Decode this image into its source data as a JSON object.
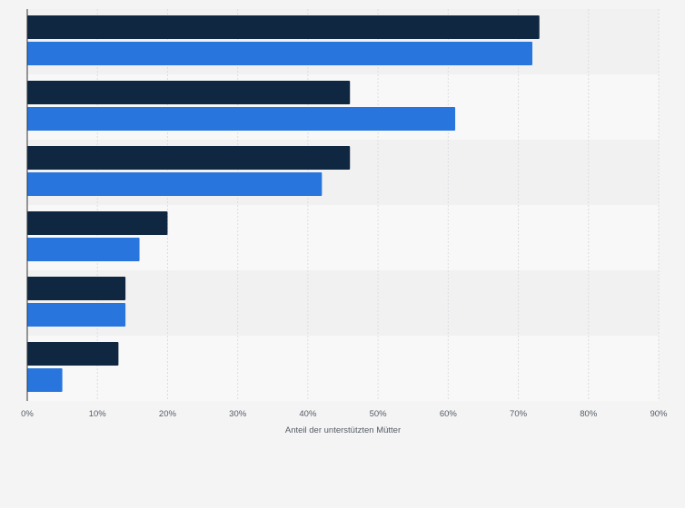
{
  "chart_data": {
    "type": "bar",
    "orientation": "horizontal",
    "xlabel": "Anteil der unterstützten Mütter",
    "ylabel": "",
    "xlim": [
      0,
      90
    ],
    "x_ticks": [
      "0%",
      "10%",
      "20%",
      "30%",
      "40%",
      "50%",
      "60%",
      "70%",
      "80%",
      "90%"
    ],
    "x_tick_values": [
      0,
      10,
      20,
      30,
      40,
      50,
      60,
      70,
      80,
      90
    ],
    "grid": true,
    "categories": [
      "",
      "",
      "",
      "",
      "",
      ""
    ],
    "series": [
      {
        "name": "",
        "color": "#0f2741",
        "values": [
          73,
          46,
          46,
          20,
          14,
          13
        ]
      },
      {
        "name": "",
        "color": "#2876dd",
        "values": [
          72,
          61,
          42,
          16,
          14,
          5
        ]
      }
    ]
  },
  "colors": {
    "page_background": "#f4f4f5",
    "plot_band_dark": "#f1f1f2",
    "plot_band_light": "#f8f8f9",
    "gridline": "#dcdde0",
    "axis_line": "#333333"
  }
}
